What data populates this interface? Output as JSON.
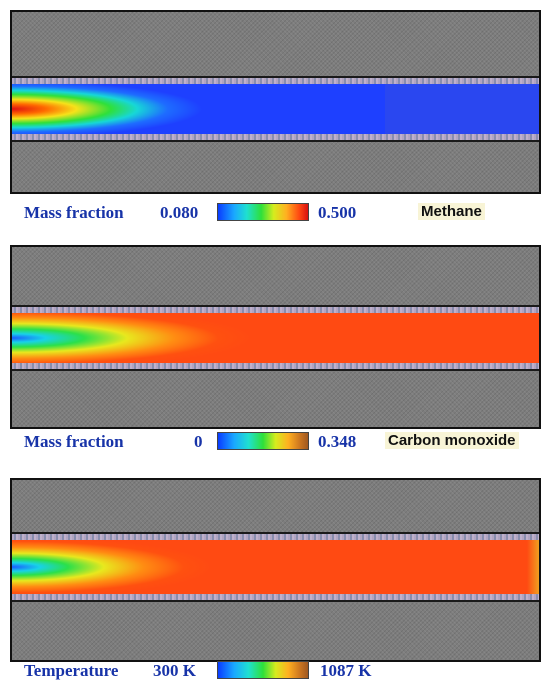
{
  "panels": [
    {
      "id": "methane",
      "legend": {
        "quantity": "Mass fraction",
        "min": "0.080",
        "max": "0.500",
        "species": "Methane"
      },
      "colors": {
        "low": "#1e40ff",
        "high": "#e01010"
      }
    },
    {
      "id": "carbon-monoxide",
      "legend": {
        "quantity": "Mass fraction",
        "min": "0",
        "max": "0.348",
        "species": "Carbon monoxide"
      },
      "colors": {
        "low": "#1a5cff",
        "high": "#ff4a12"
      }
    },
    {
      "id": "temperature",
      "legend": {
        "quantity": "Temperature",
        "min": "300 K",
        "max": "1087 K",
        "species": ""
      },
      "colors": {
        "low": "#1a5cff",
        "high": "#ff4a12"
      }
    }
  ]
}
